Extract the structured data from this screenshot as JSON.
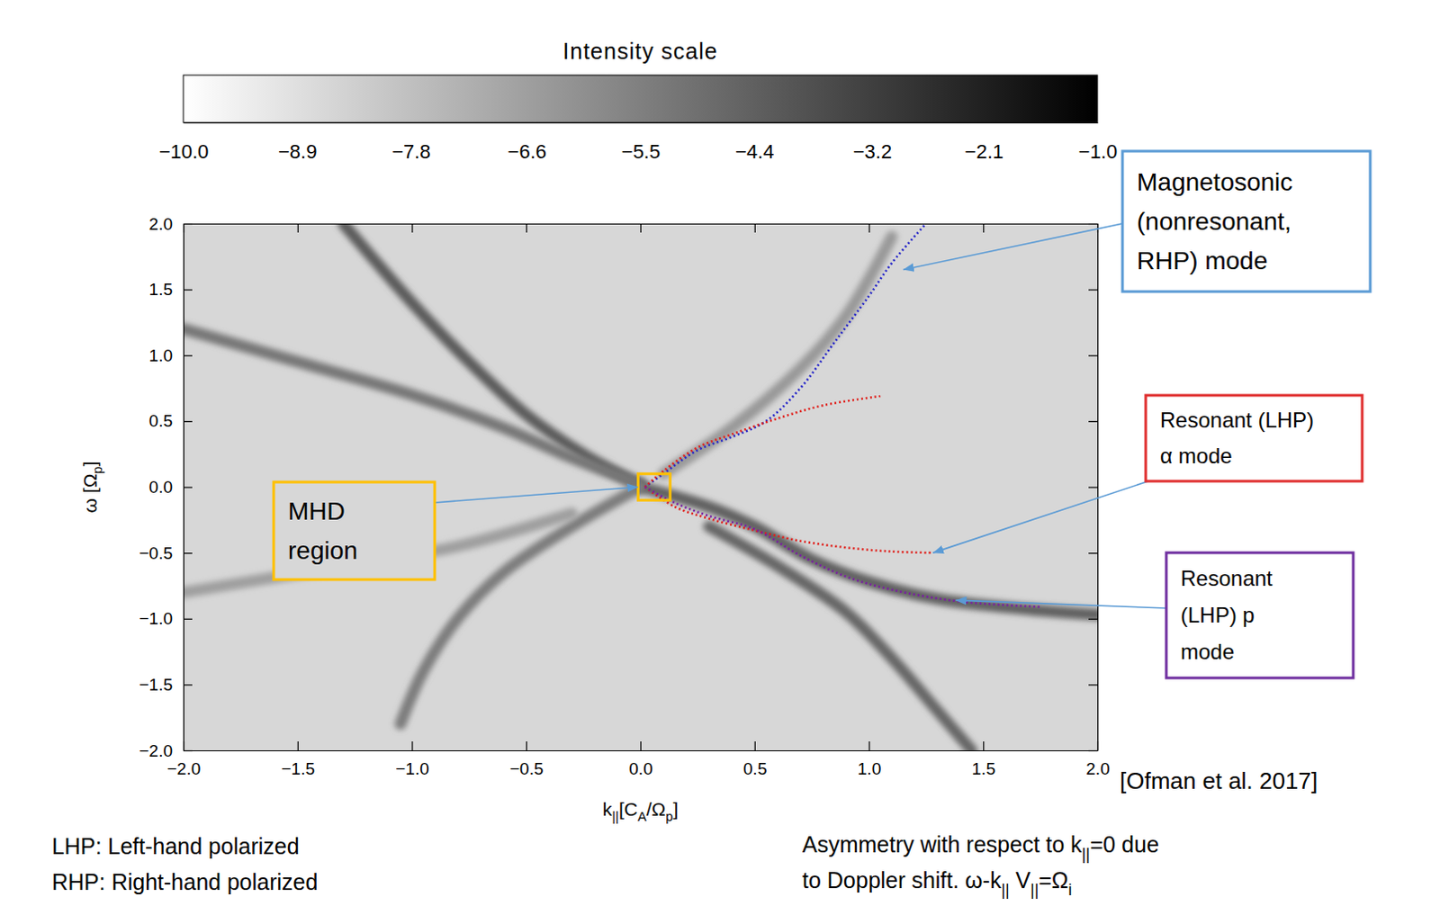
{
  "chart_data": {
    "type": "dispersion",
    "xlabel": [
      "k",
      "||",
      "[C",
      "A",
      "/Ω",
      "p",
      "]"
    ],
    "ylabel": [
      "ω  [Ω",
      "p",
      "]"
    ],
    "xlim": [
      -2,
      2
    ],
    "ylim": [
      -2,
      2
    ],
    "xticks": [
      {
        "value": -2,
        "label": "−2.0"
      },
      {
        "value": -1.5,
        "label": "−1.5"
      },
      {
        "value": -1,
        "label": "−1.0"
      },
      {
        "value": -0.5,
        "label": "−0.5"
      },
      {
        "value": 0,
        "label": "0.0"
      },
      0.5,
      {
        "value": 1,
        "label": "1.0"
      },
      1.5,
      {
        "value": 2,
        "label": "2.0"
      }
    ],
    "yticks": [
      {
        "value": -2,
        "label": "−2.0"
      },
      {
        "value": -1.5,
        "label": "−1.5"
      },
      {
        "value": -1,
        "label": "−1.0"
      },
      {
        "value": -0.5,
        "label": "−0.5"
      },
      {
        "value": 0,
        "label": "0.0"
      },
      0.5,
      {
        "value": 1,
        "label": "1.0"
      },
      1.5,
      {
        "value": 2,
        "label": "2.0"
      }
    ],
    "grid": false,
    "colorbar": {
      "title": "Intensity scale",
      "lim": [
        -10,
        -1
      ],
      "ticks": [
        {
          "value": -10,
          "label": "−10.0"
        },
        {
          "value": -8.88,
          "label": "−8.9"
        },
        {
          "value": -7.76,
          "label": "−7.8"
        },
        {
          "value": -6.62,
          "label": "−6.6"
        },
        {
          "value": -5.5,
          "label": "−5.5"
        },
        {
          "value": -4.38,
          "label": "−4.4"
        },
        {
          "value": -3.22,
          "label": "−3.2"
        },
        {
          "value": -2.12,
          "label": "−2.1"
        },
        {
          "value": -1,
          "label": "−1.0"
        }
      ]
    },
    "background": -8.6,
    "series": [
      {
        "type": "ridge",
        "intensity": -4.2,
        "x": [
          -1.3,
          -1.0,
          -0.75,
          -0.5,
          -0.25,
          0.0
        ],
        "values": [
          2.0,
          1.4,
          0.95,
          0.55,
          0.25,
          0.02
        ]
      },
      {
        "type": "ridge",
        "intensity": -5.2,
        "x": [
          -2.0,
          -1.5,
          -1.0,
          -0.6,
          -0.3,
          0.0
        ],
        "values": [
          1.2,
          0.95,
          0.7,
          0.45,
          0.22,
          0.02
        ]
      },
      {
        "type": "ridge",
        "intensity": -4.4,
        "x": [
          0.0,
          0.3,
          0.5,
          0.75,
          1.0,
          1.3,
          1.7,
          2.0
        ],
        "values": [
          0.0,
          -0.15,
          -0.3,
          -0.55,
          -0.72,
          -0.85,
          -0.93,
          -0.97
        ]
      },
      {
        "type": "ridge",
        "intensity": -4.6,
        "x": [
          0.3,
          0.6,
          0.9,
          1.1,
          1.3,
          1.45
        ],
        "values": [
          -0.3,
          -0.6,
          -0.95,
          -1.3,
          -1.7,
          -2.0
        ]
      },
      {
        "type": "ridge",
        "intensity": -5.4,
        "x": [
          0.0,
          -0.3,
          -0.6,
          -0.8,
          -0.95,
          -1.05
        ],
        "values": [
          0.0,
          -0.3,
          -0.65,
          -1.0,
          -1.4,
          -1.8
        ]
      },
      {
        "type": "ridge",
        "intensity": -6.6,
        "x": [
          -0.3,
          -0.8,
          -1.3,
          -2.0
        ],
        "values": [
          -0.2,
          -0.45,
          -0.6,
          -0.8
        ]
      },
      {
        "type": "ridge",
        "intensity": -6.4,
        "x": [
          0.1,
          0.4,
          0.7,
          0.9,
          1.1
        ],
        "values": [
          0.1,
          0.45,
          0.9,
          1.3,
          1.9
        ]
      },
      {
        "type": "line",
        "color": "#2626c8",
        "line_style": "dotted",
        "x": [
          0.02,
          0.1,
          0.25,
          0.4,
          0.55,
          0.7,
          0.85,
          1.0,
          1.1,
          1.25
        ],
        "values": [
          0.0,
          0.1,
          0.28,
          0.38,
          0.5,
          0.75,
          1.1,
          1.45,
          1.7,
          2.0
        ]
      },
      {
        "type": "line",
        "color": "#e0201b",
        "line_style": "dotted",
        "x": [
          0.02,
          0.1,
          0.25,
          0.4,
          0.6,
          0.8,
          1.05
        ],
        "values": [
          0.0,
          0.12,
          0.3,
          0.4,
          0.52,
          0.62,
          0.69
        ]
      },
      {
        "type": "line",
        "color": "#e0201b",
        "line_style": "dotted",
        "x": [
          0.02,
          0.15,
          0.3,
          0.5,
          0.7,
          0.9,
          1.1,
          1.28
        ],
        "values": [
          0.0,
          -0.15,
          -0.24,
          -0.33,
          -0.41,
          -0.46,
          -0.49,
          -0.5
        ]
      },
      {
        "type": "line",
        "color": "#7a1fa2",
        "line_style": "dotted",
        "x": [
          0.02,
          0.15,
          0.3,
          0.5,
          0.7,
          0.9,
          1.1,
          1.4,
          1.75
        ],
        "values": [
          0.0,
          -0.12,
          -0.22,
          -0.32,
          -0.52,
          -0.68,
          -0.78,
          -0.87,
          -0.91
        ]
      }
    ],
    "annotations": [
      {
        "lines": [
          "Magnetosonic",
          "(nonresonant,",
          "RHP) mode"
        ],
        "color": "#5b9bd5",
        "x": 1.15,
        "y": 1.65
      },
      {
        "lines": [
          "Resonant (LHP)",
          "α mode"
        ],
        "color": "#e03030",
        "x": 1.28,
        "y": -0.5
      },
      {
        "lines": [
          "Resonant",
          "(LHP) p",
          "mode"
        ],
        "color": "#7030a0",
        "x": 1.38,
        "y": -0.86
      },
      {
        "lines": [
          "MHD",
          "region"
        ],
        "color": "#ffc000",
        "x": -0.01,
        "y": 0.0,
        "region_x": [
          -0.01,
          0.13
        ],
        "region_y": [
          -0.1,
          0.1
        ]
      }
    ],
    "source": "[Ofman et al. 2017]",
    "notes": [
      "LHP: Left-hand polarized",
      "RHP: Right-hand polarized"
    ],
    "caption": [
      [
        "Asymmetry with respect to k",
        "||",
        "=0 due"
      ],
      [
        "to Doppler shift.  ω-k",
        "||",
        " V",
        "||",
        "=Ω",
        "i"
      ]
    ]
  }
}
